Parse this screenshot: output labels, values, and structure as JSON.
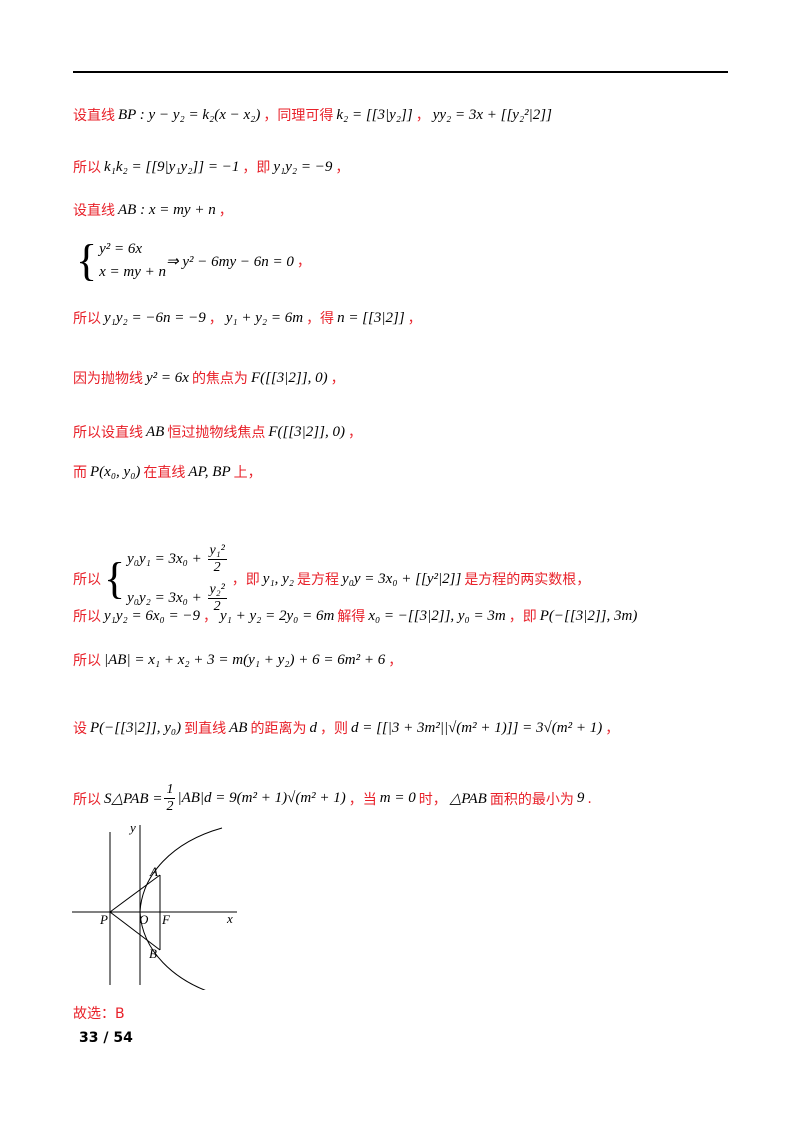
{
  "lines": [
    [
      {
        "c": "设直线"
      },
      {
        "m": "BP : y − y₂ = k₂(x − x₂)"
      },
      {
        "c": "，同理可得"
      },
      {
        "m": "k₂ = [[3|y₂]]"
      },
      {
        "c": "，"
      },
      {
        "m": "yy₂ = 3x + [[y₂²|2]]"
      }
    ],
    [
      {
        "c": "所以"
      },
      {
        "m": "k₁k₂ = [[9|y₁y₂]] = −1"
      },
      {
        "c": "，即"
      },
      {
        "m": "y₁y₂ = −9"
      },
      {
        "c": "，"
      }
    ],
    [
      {
        "c": "设直线"
      },
      {
        "m": "AB : x = my + n"
      },
      {
        "c": "，"
      }
    ],
    [
      {
        "m": "{y² = 6x;x = my + n} ⇒ y² − 6my − 6n = 0"
      },
      {
        "c": "，"
      }
    ],
    [
      {
        "c": "所以"
      },
      {
        "m": "y₁y₂ = −6n = −9"
      },
      {
        "c": "，"
      },
      {
        "m": "y₁ + y₂ = 6m"
      },
      {
        "c": "，得"
      },
      {
        "m": "n = [[3|2]]"
      },
      {
        "c": "，"
      }
    ],
    [
      {
        "c": "因为抛物线"
      },
      {
        "m": "y² = 6x"
      },
      {
        "c": "的焦点为"
      },
      {
        "m": "F([[3|2]], 0)"
      },
      {
        "c": "，"
      }
    ],
    [
      {
        "c": "所以设直线"
      },
      {
        "m": "AB"
      },
      {
        "c": "恒过抛物线焦点"
      },
      {
        "m": "F([[3|2]], 0)"
      },
      {
        "c": "，"
      }
    ],
    [
      {
        "c": "而"
      },
      {
        "m": "P(x₀, y₀)"
      },
      {
        "c": "在直线"
      },
      {
        "m": "AP, BP"
      },
      {
        "c": "上，"
      }
    ],
    [
      {
        "c": "所以"
      },
      {
        "m": "{y₀y₁ = 3x₀ + [[y₁²|2]];y₀y₂ = 3x₀ + [[y₂²|2]]}"
      },
      {
        "c": "，即"
      },
      {
        "m": "y₁, y₂"
      },
      {
        "c": "是方程"
      },
      {
        "m": "y₀y = 3x₀ + [[y²|2]]"
      },
      {
        "c": "是方程的两实数根，"
      }
    ],
    [
      {
        "c": "所以"
      },
      {
        "m": "y₁y₂ = 6x₀ = −9"
      },
      {
        "c": "，"
      },
      {
        "m": "y₁ + y₂ = 2y₀ = 6m"
      },
      {
        "c": "解得"
      },
      {
        "m": "x₀ = −[[3|2]], y₀ = 3m"
      },
      {
        "c": "，即"
      },
      {
        "m": "P(−[[3|2]], 3m)"
      }
    ],
    [
      {
        "c": "所以"
      },
      {
        "m": "|AB| = x₁ + x₂ + 3 = m(y₁ + y₂) + 6 = 6m² + 6"
      },
      {
        "c": "，"
      }
    ],
    [
      {
        "c": "设"
      },
      {
        "m": "P(−[[3|2]], y₀)"
      },
      {
        "c": "到直线"
      },
      {
        "m": "AB"
      },
      {
        "c": "的距离为"
      },
      {
        "m": "d"
      },
      {
        "c": "，则"
      },
      {
        "m": "d = [[|3 + 3m²||√(m² + 1)]] = 3√(m² + 1)"
      },
      {
        "c": "，"
      }
    ],
    [
      {
        "c": "所以"
      },
      {
        "m": "S△PAB = [[1|2]]|AB|d = 9(m² + 1)√(m² + 1)"
      },
      {
        "c": "，当"
      },
      {
        "m": "m = 0"
      },
      {
        "c": "时，"
      },
      {
        "m": "△PAB"
      },
      {
        "c": "面积的最小为"
      },
      {
        "m": "9"
      },
      {
        "c": "."
      }
    ]
  ],
  "answer": "故选：B",
  "page_number": "33 / 54",
  "figure": {
    "labels": {
      "y": "y",
      "x": "x",
      "P": "P",
      "O": "O",
      "F": "F",
      "A": "A",
      "B": "B"
    }
  },
  "colors": {
    "red_text": "#e8212a"
  }
}
